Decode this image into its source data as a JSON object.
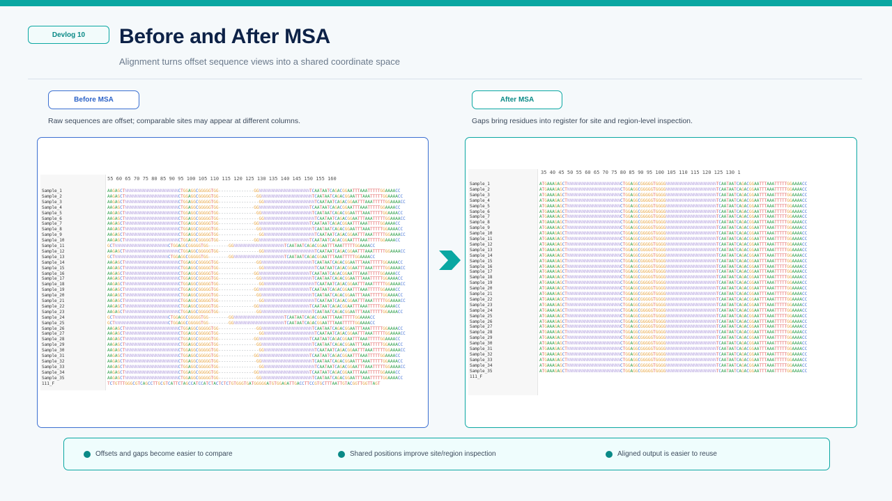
{
  "header": {
    "tag": "Devlog 10",
    "title": "Before and After MSA",
    "subtitle": "Alignment turns offset sequence views into a shared coordinate space"
  },
  "before": {
    "label": "Before MSA",
    "description": "Raw sequences are offset; comparable sites may appear at different columns.",
    "ruler": "55   60   65   70   75   80   85   90   95   100  105  110  115  120  125  130  135  140  145  150  155  160"
  },
  "after": {
    "label": "After MSA",
    "description": "Gaps bring residues into register for site and region-level inspection.",
    "ruler": "35   40   45   50   55   60   65   70   75   80   85   90   95   100  105  110  115  120  125  130  1"
  },
  "samples": [
    "Sample_1",
    "Sample_2",
    "Sample_3",
    "Sample_4",
    "Sample_5",
    "Sample_6",
    "Sample_7",
    "Sample_8",
    "Sample_9",
    "Sample_10",
    "Sample_11",
    "Sample_12",
    "Sample_13",
    "Sample_14",
    "Sample_15",
    "Sample_16",
    "Sample_17",
    "Sample_18",
    "Sample_19",
    "Sample_20",
    "Sample_21",
    "Sample_22",
    "Sample_23",
    "Sample_24",
    "Sample_25",
    "Sample_26",
    "Sample_27",
    "Sample_28",
    "Sample_29",
    "Sample_30",
    "Sample_31",
    "Sample_32",
    "Sample_33",
    "Sample_34",
    "Sample_35",
    "111_F"
  ],
  "legend": [
    "Offsets and gaps become easier to compare",
    "Shared positions improve site/region inspection",
    "Aligned output is easier to reuse"
  ],
  "colors": {
    "accent": "#0aa7a2",
    "before_border": "#3b6fd1",
    "title": "#0d2247"
  }
}
